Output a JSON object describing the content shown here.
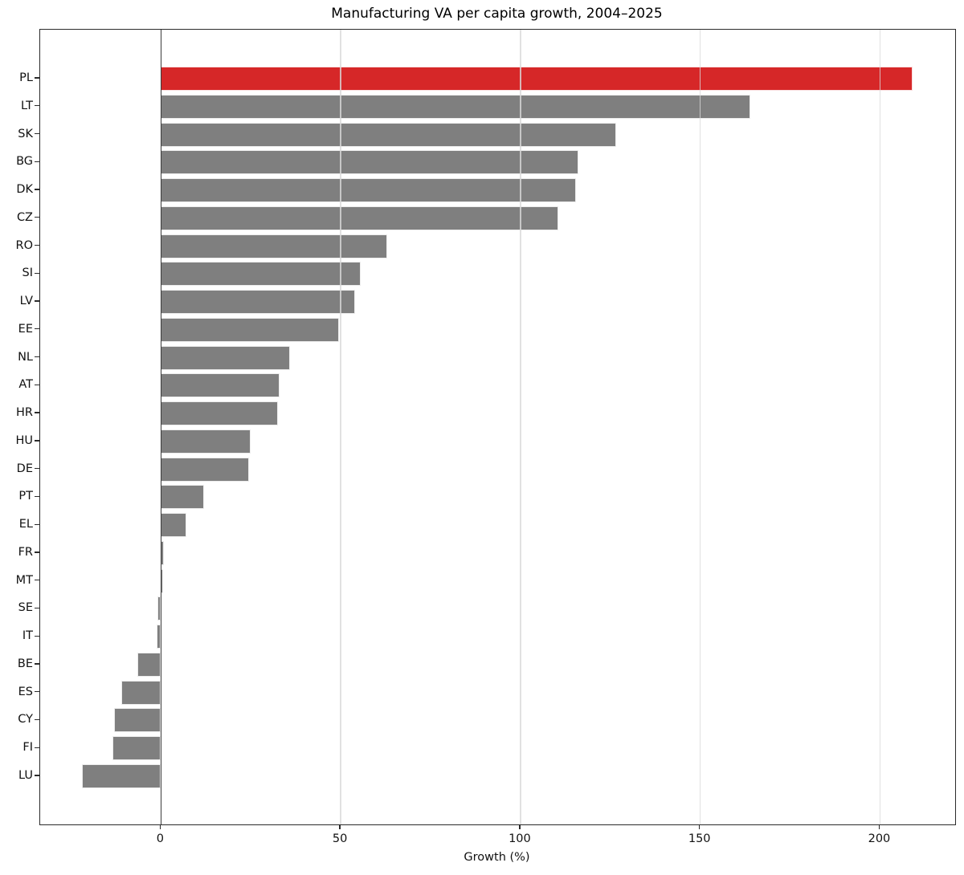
{
  "figure": {
    "title": "Manufacturing VA per capita growth, 2004–2025",
    "xlabel": "Growth (%)"
  },
  "chart_data": {
    "type": "bar",
    "orientation": "horizontal",
    "title": "Manufacturing VA per capita growth, 2004–2025",
    "xlabel": "Growth (%)",
    "ylabel": "",
    "categories": [
      "PL",
      "LT",
      "SK",
      "BG",
      "DK",
      "CZ",
      "RO",
      "SI",
      "LV",
      "EE",
      "NL",
      "AT",
      "HR",
      "HU",
      "DE",
      "PT",
      "EL",
      "FR",
      "MT",
      "SE",
      "IT",
      "BE",
      "ES",
      "CY",
      "FI",
      "LU"
    ],
    "values": [
      209,
      164,
      126.5,
      116,
      115.5,
      110.5,
      63,
      55.5,
      54,
      49.5,
      36,
      33,
      32.5,
      25,
      24.5,
      12,
      7,
      0.9,
      0.7,
      -1.0,
      -1.3,
      -6.5,
      -11,
      -13,
      -13.5,
      -22
    ],
    "xticks": [
      0,
      50,
      100,
      150,
      200
    ],
    "xlim": [
      -33.6,
      220.9
    ],
    "grid": true,
    "legend": false,
    "zero_line": true,
    "highlight_category": "PL",
    "colors": {
      "bar": "#7f7f7f",
      "highlight": "#d62728",
      "gridline": "#dadada",
      "spine": "#2b2b2b",
      "zero_line": "#3c3c3c"
    }
  }
}
